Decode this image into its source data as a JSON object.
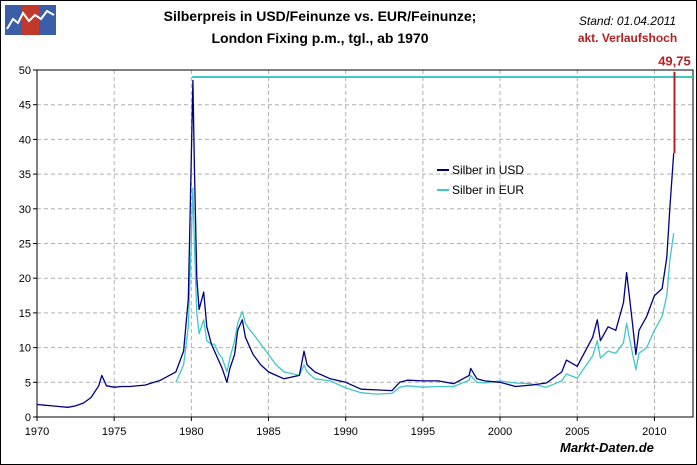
{
  "header": {
    "title_line1": "Silberpreis in USD/Feinunze vs. EUR/Feinunze;",
    "title_line2": "London Fixing p.m., tgl., ab 1970",
    "stand": "Stand: 01.04.2011",
    "verlaufshoch": "akt. Verlaufshoch",
    "brand": "Markt-Daten.de"
  },
  "colors": {
    "usd": "#000080",
    "eur": "#40c8c8",
    "high_line": "#40c8c8",
    "peak": "#b22222",
    "grid": "#b0b0b0",
    "logo_blue": "#3a5fa8",
    "logo_red": "#c0392b"
  },
  "chart_data": {
    "type": "line",
    "xlim": [
      1970,
      2012.5
    ],
    "ylim": [
      0,
      50
    ],
    "x_ticks": [
      1970,
      1975,
      1980,
      1985,
      1990,
      1995,
      2000,
      2005,
      2010
    ],
    "x_tick_labels": [
      "1970",
      "1975",
      "1980",
      "1985",
      "1990",
      "1995",
      "2000",
      "2005",
      "2010"
    ],
    "y_ticks": [
      0,
      5,
      10,
      15,
      20,
      25,
      30,
      35,
      40,
      45,
      50
    ],
    "y_tick_labels": [
      "0",
      "5",
      "10",
      "15",
      "20",
      "25",
      "30",
      "35",
      "40",
      "45",
      "50"
    ],
    "grid": true,
    "legend_position": "center-right",
    "reference_line": {
      "value": 49,
      "from_x": 1980.05,
      "label": "akt. Verlaufshoch"
    },
    "peak": {
      "x": 2011.3,
      "value": 49.75,
      "label": "49,75",
      "from_value": 38
    },
    "series": [
      {
        "name": "Silber in USD",
        "x": [
          1970,
          1970.5,
          1971,
          1971.5,
          1972,
          1972.5,
          1973,
          1973.5,
          1974,
          1974.2,
          1974.5,
          1975,
          1975.5,
          1976,
          1977,
          1978,
          1979,
          1979.5,
          1979.8,
          1980.0,
          1980.1,
          1980.2,
          1980.35,
          1980.5,
          1980.8,
          1981,
          1981.3,
          1981.5,
          1981.8,
          1982,
          1982.3,
          1982.5,
          1982.8,
          1983,
          1983.3,
          1983.5,
          1983.8,
          1984,
          1984.5,
          1985,
          1985.5,
          1986,
          1987,
          1987.3,
          1987.5,
          1988,
          1989,
          1990,
          1991,
          1992,
          1993,
          1993.5,
          1994,
          1995,
          1996,
          1997,
          1998,
          1998.1,
          1998.5,
          1999,
          2000,
          2001,
          2002,
          2003,
          2004,
          2004.3,
          2005,
          2006,
          2006.3,
          2006.5,
          2007,
          2007.5,
          2008,
          2008.2,
          2008.5,
          2008.8,
          2009,
          2009.5,
          2010,
          2010.5,
          2010.8,
          2011,
          2011.25
        ],
        "values": [
          1.8,
          1.7,
          1.6,
          1.5,
          1.4,
          1.6,
          2.0,
          2.8,
          4.5,
          6.0,
          4.5,
          4.3,
          4.4,
          4.4,
          4.6,
          5.3,
          6.5,
          9.5,
          17.0,
          38.0,
          48.5,
          36.0,
          20.0,
          15.5,
          18.0,
          13.0,
          10.5,
          9.5,
          8.0,
          7.0,
          5.0,
          7.0,
          9.0,
          12.5,
          14.0,
          11.5,
          10.0,
          9.0,
          7.5,
          6.5,
          6.0,
          5.5,
          6.0,
          9.5,
          7.5,
          6.5,
          5.5,
          5.0,
          4.0,
          3.9,
          3.8,
          5.0,
          5.3,
          5.2,
          5.2,
          4.8,
          6.0,
          7.0,
          5.5,
          5.2,
          5.0,
          4.4,
          4.6,
          4.9,
          6.5,
          8.2,
          7.3,
          11.5,
          14.0,
          11.0,
          13.0,
          12.5,
          16.5,
          20.8,
          15.0,
          9.0,
          12.5,
          14.5,
          17.5,
          18.5,
          23.0,
          30.0,
          38.0
        ]
      },
      {
        "name": "Silber in EUR",
        "x": [
          1979,
          1979.5,
          1979.8,
          1980.0,
          1980.1,
          1980.2,
          1980.35,
          1980.5,
          1980.8,
          1981,
          1981.3,
          1981.5,
          1981.8,
          1982,
          1982.3,
          1982.5,
          1982.8,
          1983,
          1983.3,
          1983.5,
          1983.8,
          1984,
          1984.5,
          1985,
          1985.5,
          1986,
          1987,
          1987.3,
          1987.5,
          1988,
          1989,
          1990,
          1991,
          1992,
          1993,
          1993.5,
          1994,
          1995,
          1996,
          1997,
          1998,
          1998.1,
          1998.5,
          1999,
          2000,
          2001,
          2002,
          2003,
          2004,
          2004.3,
          2005,
          2006,
          2006.3,
          2006.5,
          2007,
          2007.5,
          2008,
          2008.2,
          2008.5,
          2008.8,
          2009,
          2009.5,
          2010,
          2010.5,
          2010.8,
          2011,
          2011.25
        ],
        "values": [
          5.0,
          7.5,
          13.0,
          26.0,
          33.0,
          25.0,
          15.0,
          12.0,
          14.0,
          11.0,
          10.5,
          10.5,
          9.0,
          8.5,
          6.5,
          8.5,
          11.0,
          13.5,
          15.2,
          13.5,
          12.5,
          12.0,
          10.5,
          9.0,
          7.5,
          6.5,
          6.0,
          7.5,
          6.5,
          5.5,
          5.2,
          4.2,
          3.5,
          3.3,
          3.4,
          4.3,
          4.5,
          4.3,
          4.4,
          4.4,
          5.3,
          6.0,
          5.0,
          4.9,
          5.2,
          4.9,
          4.8,
          4.3,
          5.2,
          6.2,
          5.6,
          8.8,
          11.0,
          8.5,
          9.5,
          9.2,
          10.7,
          13.5,
          10.0,
          6.8,
          9.2,
          10.0,
          12.5,
          14.5,
          17.5,
          22.5,
          26.5
        ]
      }
    ]
  }
}
